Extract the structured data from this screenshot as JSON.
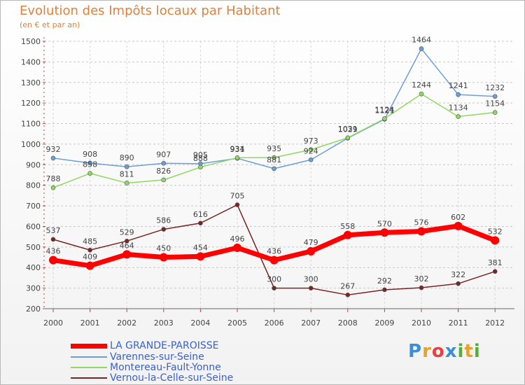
{
  "header": {
    "title": "Evolution des Impôts locaux par Habitant",
    "subtitle": "(en € et par an)"
  },
  "logo": {
    "text": "Proxiti",
    "colors": [
      "#3a8fd8",
      "#e8a030",
      "#e84040",
      "#3a8fd8",
      "#50b030",
      "#e8a030",
      "#50b030"
    ]
  },
  "chart_data": {
    "type": "line",
    "title": "Evolution des Impôts locaux par Habitant",
    "subtitle": "(en € et par an)",
    "xlabel": "",
    "ylabel": "",
    "x": [
      "2000",
      "2001",
      "2002",
      "2003",
      "2004",
      "2005",
      "2006",
      "2007",
      "2008",
      "2009",
      "2010",
      "2011",
      "2012"
    ],
    "ylim": [
      200,
      1500
    ],
    "yticks": [
      "200",
      "300",
      "400",
      "500",
      "600",
      "700",
      "800",
      "900",
      "1000",
      "1100",
      "1200",
      "1300",
      "1400",
      "1500"
    ],
    "grid": true,
    "legend_position": "bottom-left",
    "series": [
      {
        "name": "LA GRANDE-PAROISSE",
        "color": "#ff0000",
        "values": [
          436,
          409,
          464,
          450,
          454,
          496,
          436,
          479,
          558,
          570,
          576,
          602,
          532
        ],
        "labels": [
          "436",
          "409",
          "464",
          "450",
          "454",
          "496",
          "436",
          "479",
          "558",
          "570",
          "576",
          "602",
          "532"
        ]
      },
      {
        "name": "Varennes-sur-Seine",
        "color": "#6aa0d8",
        "values": [
          932,
          908,
          890,
          907,
          905,
          931,
          881,
          924,
          1029,
          1121,
          1464,
          1241,
          1232
        ],
        "labels": [
          "932",
          "908",
          "890",
          "907",
          "905",
          "931",
          "881",
          "924",
          "1029",
          "1121",
          "1464",
          "1241",
          "1232"
        ]
      },
      {
        "name": "Montereau-Fault-Yonne",
        "color": "#90d860",
        "values": [
          788,
          858,
          811,
          826,
          888,
          934,
          935,
          973,
          1031,
          1124,
          1244,
          1134,
          1154
        ],
        "labels": [
          "788",
          "858",
          "811",
          "826",
          "888",
          "934",
          "935",
          "973",
          "1031",
          "1124",
          "1244",
          "1134",
          "1154"
        ]
      },
      {
        "name": "Vernou-la-Celle-sur-Seine",
        "color": "#7a2424",
        "values": [
          537,
          485,
          529,
          586,
          616,
          705,
          300,
          300,
          267,
          292,
          302,
          322,
          381
        ],
        "labels": [
          "537",
          "485",
          "529",
          "586",
          "616",
          "705",
          "300",
          "300",
          "267",
          "292",
          "302",
          "322",
          "381"
        ]
      }
    ]
  }
}
